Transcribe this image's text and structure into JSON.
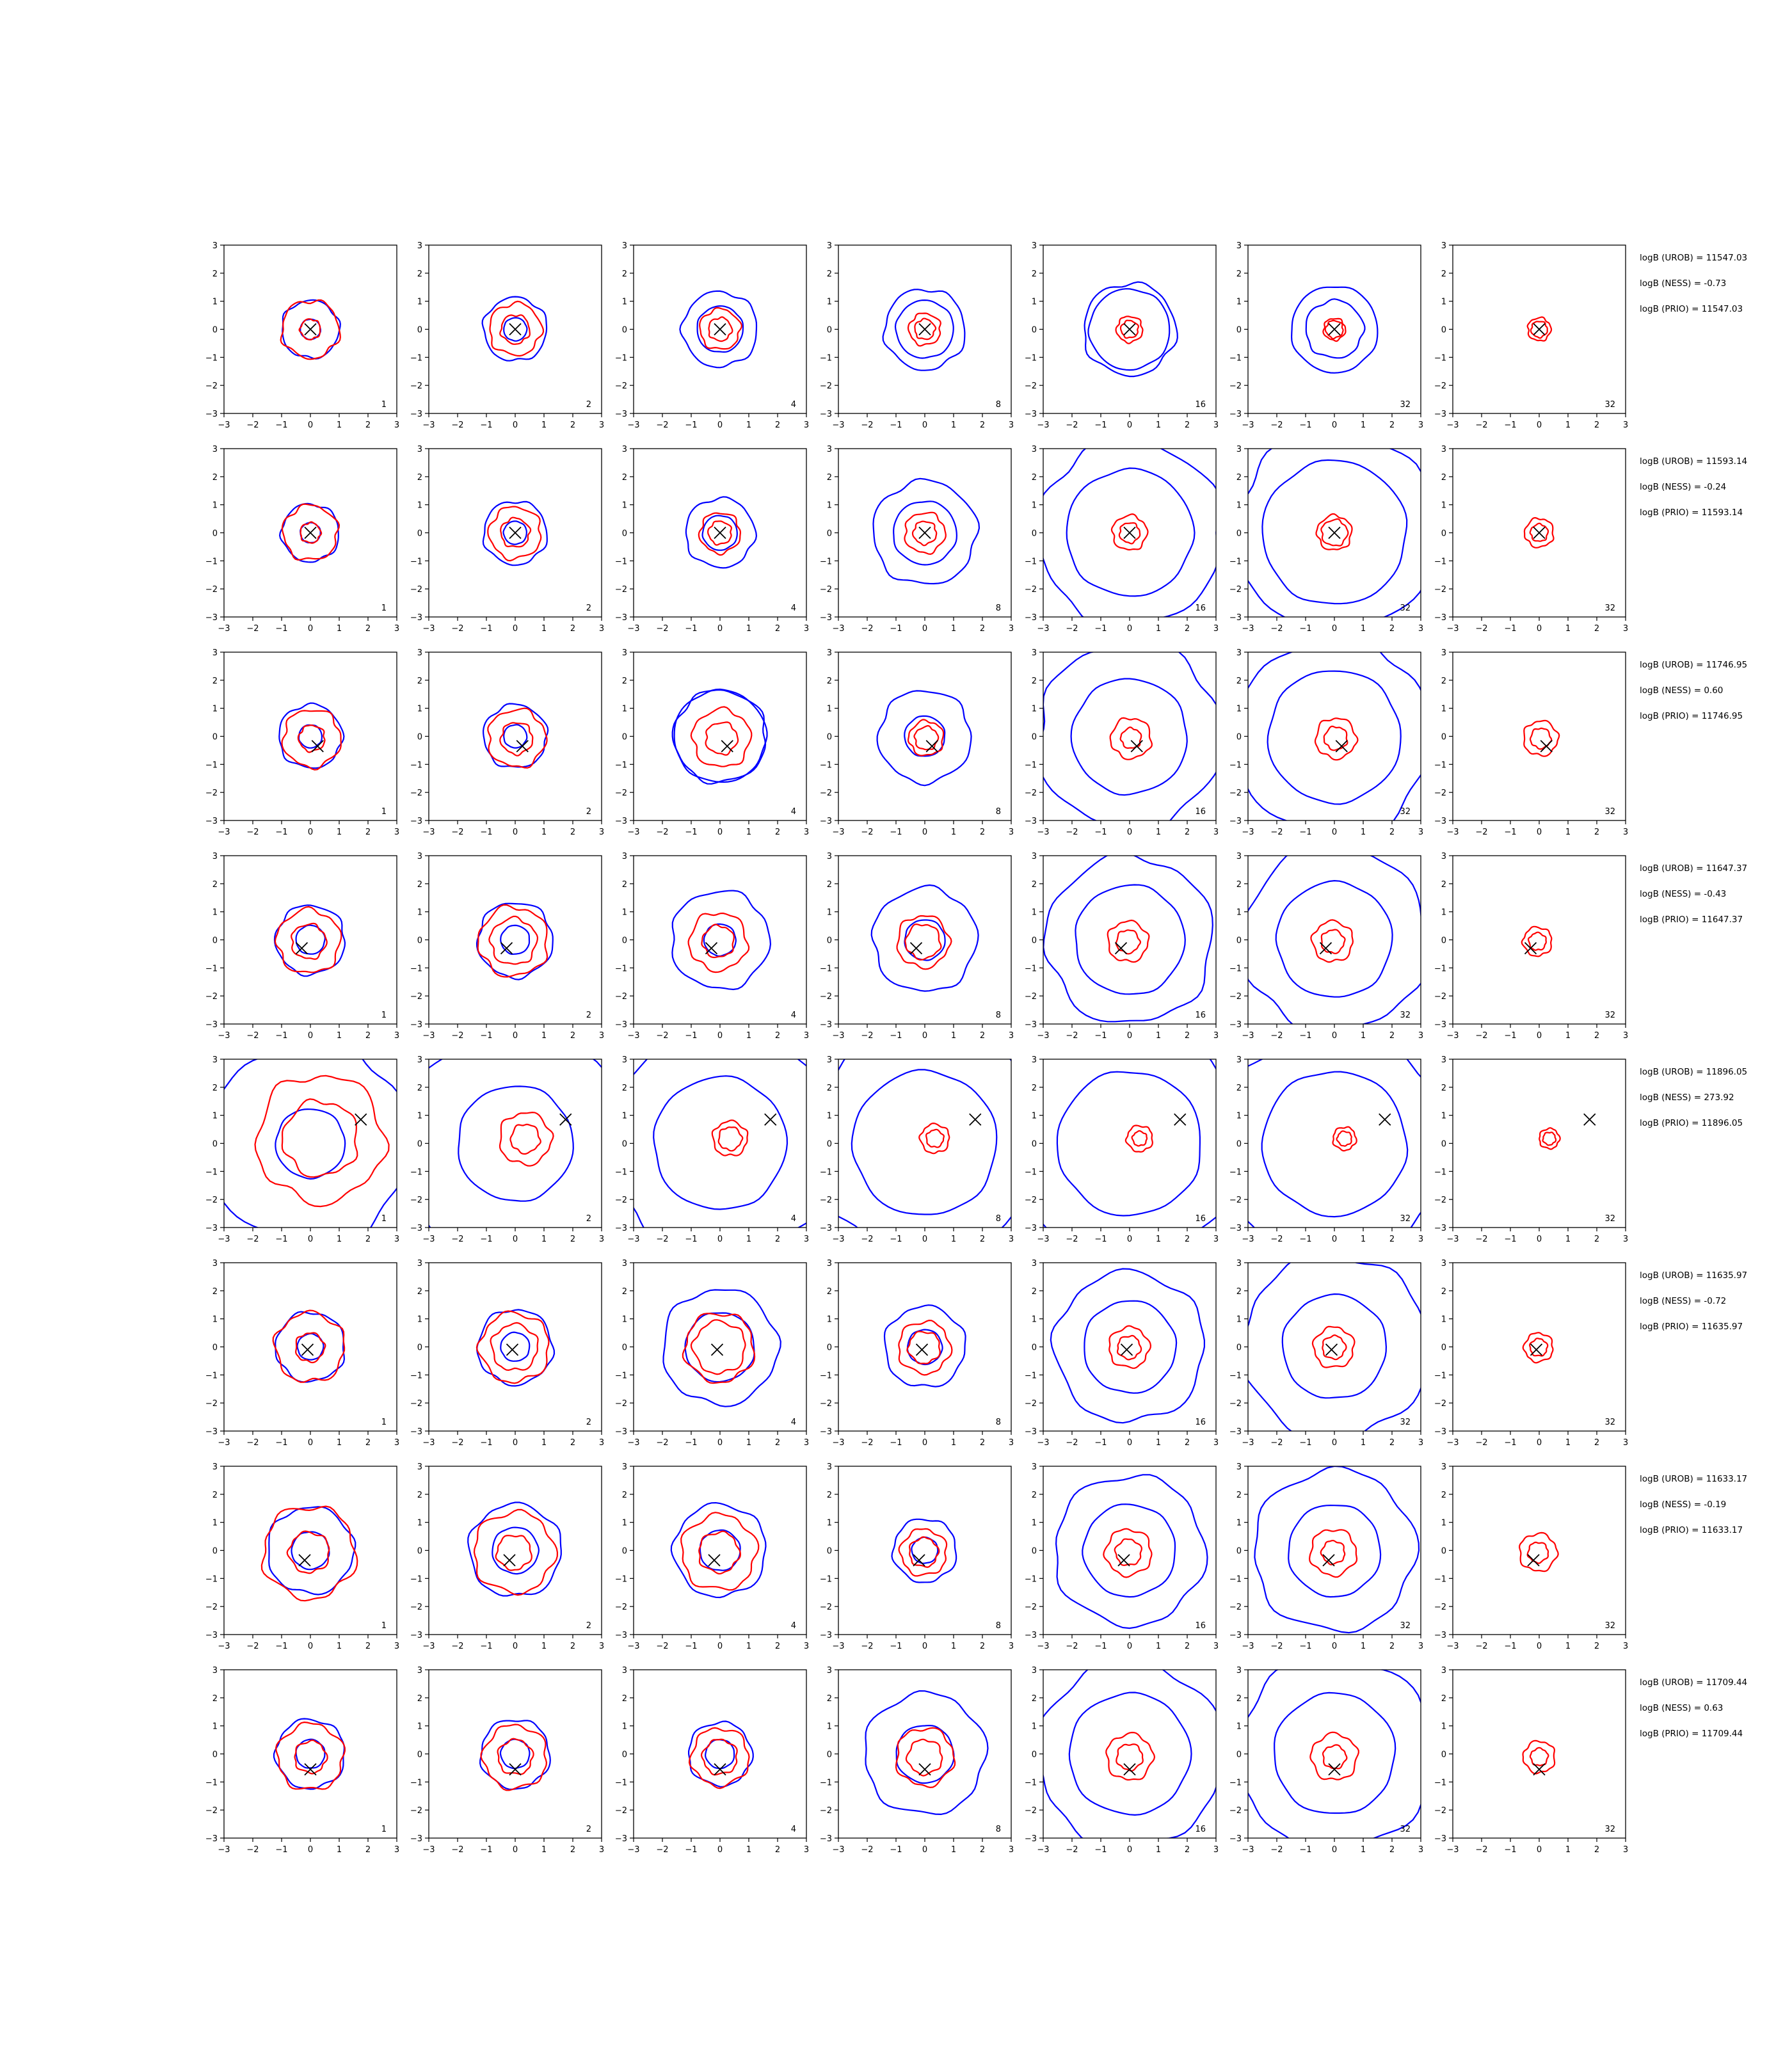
{
  "chart_data": {
    "type": "contour",
    "rows": 8,
    "cols": 7,
    "xlim": [
      -3,
      3
    ],
    "ylim": [
      -3,
      3
    ],
    "ticks": [
      "−3",
      "−2",
      "−1",
      "0",
      "1",
      "2",
      "3"
    ],
    "grid": false,
    "legend": "none",
    "panel_labels": [
      "1",
      "2",
      "4",
      "8",
      "16",
      "32",
      "32"
    ],
    "line_colors": {
      "blue": "#0000ff",
      "red": "#ff0000",
      "marker": "#000000"
    },
    "rows_data": [
      {
        "truth": [
          0.0,
          0.0
        ],
        "blue": [
          [
            0.35,
            1.0
          ],
          [
            0.4,
            1.1
          ],
          [
            0.8,
            1.3
          ],
          [
            1.0,
            1.4
          ],
          [
            1.4,
            1.6
          ],
          [
            1.5,
            1.0
          ],
          [
            0,
            0
          ]
        ],
        "red": [
          [
            0.35,
            1.0
          ],
          [
            0.5,
            0.9
          ],
          [
            0.4,
            0.7
          ],
          [
            0.35,
            0.55
          ],
          [
            0.3,
            0.45
          ],
          [
            0.3,
            0.38
          ],
          [
            0.28,
            0.4
          ]
        ],
        "stats": {
          "urob": "logB (UROB) = 11547.03",
          "ness": "logB (NESS) = -0.73",
          "prio": "logB (PRIO) = 11547.03"
        }
      },
      {
        "truth": [
          0.0,
          0.0
        ],
        "blue": [
          [
            0.35,
            1.0
          ],
          [
            0.4,
            1.1
          ],
          [
            0.6,
            1.2
          ],
          [
            1.1,
            1.8
          ],
          [
            2.2,
            3.2
          ],
          [
            2.5,
            3.5
          ],
          [
            0,
            0
          ]
        ],
        "red": [
          [
            0.35,
            0.95
          ],
          [
            0.5,
            0.9
          ],
          [
            0.4,
            0.7
          ],
          [
            0.4,
            0.7
          ],
          [
            0.35,
            0.6
          ],
          [
            0.45,
            0.6
          ],
          [
            0.3,
            0.5
          ]
        ],
        "stats": {
          "urob": "logB (UROB) = 11593.14",
          "ness": "logB (NESS) = -0.24",
          "prio": "logB (PRIO) = 11593.14"
        }
      },
      {
        "truth": [
          0.25,
          -0.35
        ],
        "blue": [
          [
            0.4,
            1.1
          ],
          [
            0.4,
            1.1
          ],
          [
            1.6,
            1.6
          ],
          [
            0.7,
            1.6
          ],
          [
            2.0,
            3.2
          ],
          [
            2.3,
            3.4
          ],
          [
            0,
            0
          ]
        ],
        "red": [
          [
            0.45,
            1.0
          ],
          [
            0.55,
            1.0
          ],
          [
            0.55,
            1.0
          ],
          [
            0.4,
            0.6
          ],
          [
            0.35,
            0.7
          ],
          [
            0.4,
            0.7
          ],
          [
            0.35,
            0.6
          ]
        ],
        "stats": {
          "urob": "logB (UROB) = 11746.95",
          "ness": "logB (NESS) = 0.60",
          "prio": "logB (PRIO) = 11746.95"
        }
      },
      {
        "truth": [
          -0.3,
          -0.3
        ],
        "blue": [
          [
            0.5,
            1.2
          ],
          [
            0.5,
            1.3
          ],
          [
            0.55,
            1.7
          ],
          [
            0.7,
            1.8
          ],
          [
            1.9,
            2.9
          ],
          [
            2.0,
            3.2
          ],
          [
            0,
            0
          ]
        ],
        "red": [
          [
            0.6,
            1.1
          ],
          [
            0.8,
            1.2
          ],
          [
            0.55,
            1.0
          ],
          [
            0.6,
            0.9
          ],
          [
            0.4,
            0.7
          ],
          [
            0.4,
            0.7
          ],
          [
            0.3,
            0.5
          ]
        ],
        "stats": {
          "urob": "logB (UROB) = 11647.37",
          "ness": "logB (NESS) = -0.43",
          "prio": "logB (PRIO) = 11647.37"
        }
      },
      {
        "truth": [
          1.75,
          0.85
        ],
        "blue": [
          [
            1.2,
            3.5
          ],
          [
            2.0,
            4.0
          ],
          [
            2.3,
            4.0
          ],
          [
            2.5,
            4.0
          ],
          [
            2.5,
            4.0
          ],
          [
            2.5,
            4.0
          ],
          [
            0,
            0
          ]
        ],
        "red": [
          [
            1.3,
            2.2
          ],
          [
            0.5,
            0.9
          ],
          [
            0.4,
            0.6
          ],
          [
            0.3,
            0.5
          ],
          [
            0.25,
            0.45
          ],
          [
            0.25,
            0.4
          ],
          [
            0.22,
            0.35
          ]
        ],
        "stats": {
          "urob": "logB (UROB) = 11896.05",
          "ness": "logB (NESS) = 273.92",
          "prio": "logB (PRIO) = 11896.05"
        }
      },
      {
        "truth": [
          -0.1,
          -0.1
        ],
        "blue": [
          [
            0.45,
            1.2
          ],
          [
            0.5,
            1.3
          ],
          [
            1.2,
            2.0
          ],
          [
            0.6,
            1.4
          ],
          [
            1.6,
            2.6
          ],
          [
            1.8,
            3.2
          ],
          [
            0,
            0
          ]
        ],
        "red": [
          [
            0.5,
            1.2
          ],
          [
            0.8,
            1.2
          ],
          [
            0.9,
            1.2
          ],
          [
            0.55,
            0.9
          ],
          [
            0.4,
            0.7
          ],
          [
            0.4,
            0.7
          ],
          [
            0.3,
            0.5
          ]
        ],
        "stats": {
          "urob": "logB (UROB) = 11635.97",
          "ness": "logB (NESS) = -0.72",
          "prio": "logB (PRIO) = 11635.97"
        }
      },
      {
        "truth": [
          -0.2,
          -0.35
        ],
        "blue": [
          [
            0.65,
            1.5
          ],
          [
            0.8,
            1.6
          ],
          [
            0.7,
            1.6
          ],
          [
            0.45,
            1.1
          ],
          [
            1.6,
            2.6
          ],
          [
            1.6,
            2.8
          ],
          [
            0,
            0
          ]
        ],
        "red": [
          [
            0.7,
            1.6
          ],
          [
            0.6,
            1.4
          ],
          [
            0.7,
            1.3
          ],
          [
            0.5,
            0.8
          ],
          [
            0.45,
            0.8
          ],
          [
            0.4,
            0.8
          ],
          [
            0.35,
            0.65
          ]
        ],
        "stats": {
          "urob": "logB (UROB) = 11633.17",
          "ness": "logB (NESS) = -0.19",
          "prio": "logB (PRIO) = 11633.17"
        }
      },
      {
        "truth": [
          0.0,
          -0.55
        ],
        "blue": [
          [
            0.5,
            1.2
          ],
          [
            0.5,
            1.2
          ],
          [
            0.5,
            1.1
          ],
          [
            1.0,
            2.1
          ],
          [
            2.1,
            3.2
          ],
          [
            2.1,
            3.4
          ],
          [
            0,
            0
          ]
        ],
        "red": [
          [
            0.55,
            1.15
          ],
          [
            0.6,
            1.1
          ],
          [
            0.6,
            1.0
          ],
          [
            0.6,
            1.0
          ],
          [
            0.45,
            0.8
          ],
          [
            0.4,
            0.8
          ],
          [
            0.3,
            0.55
          ]
        ],
        "stats": {
          "urob": "logB (UROB) = 11709.44",
          "ness": "logB (NESS) = 0.63",
          "prio": "logB (PRIO) = 11709.44"
        }
      }
    ]
  }
}
